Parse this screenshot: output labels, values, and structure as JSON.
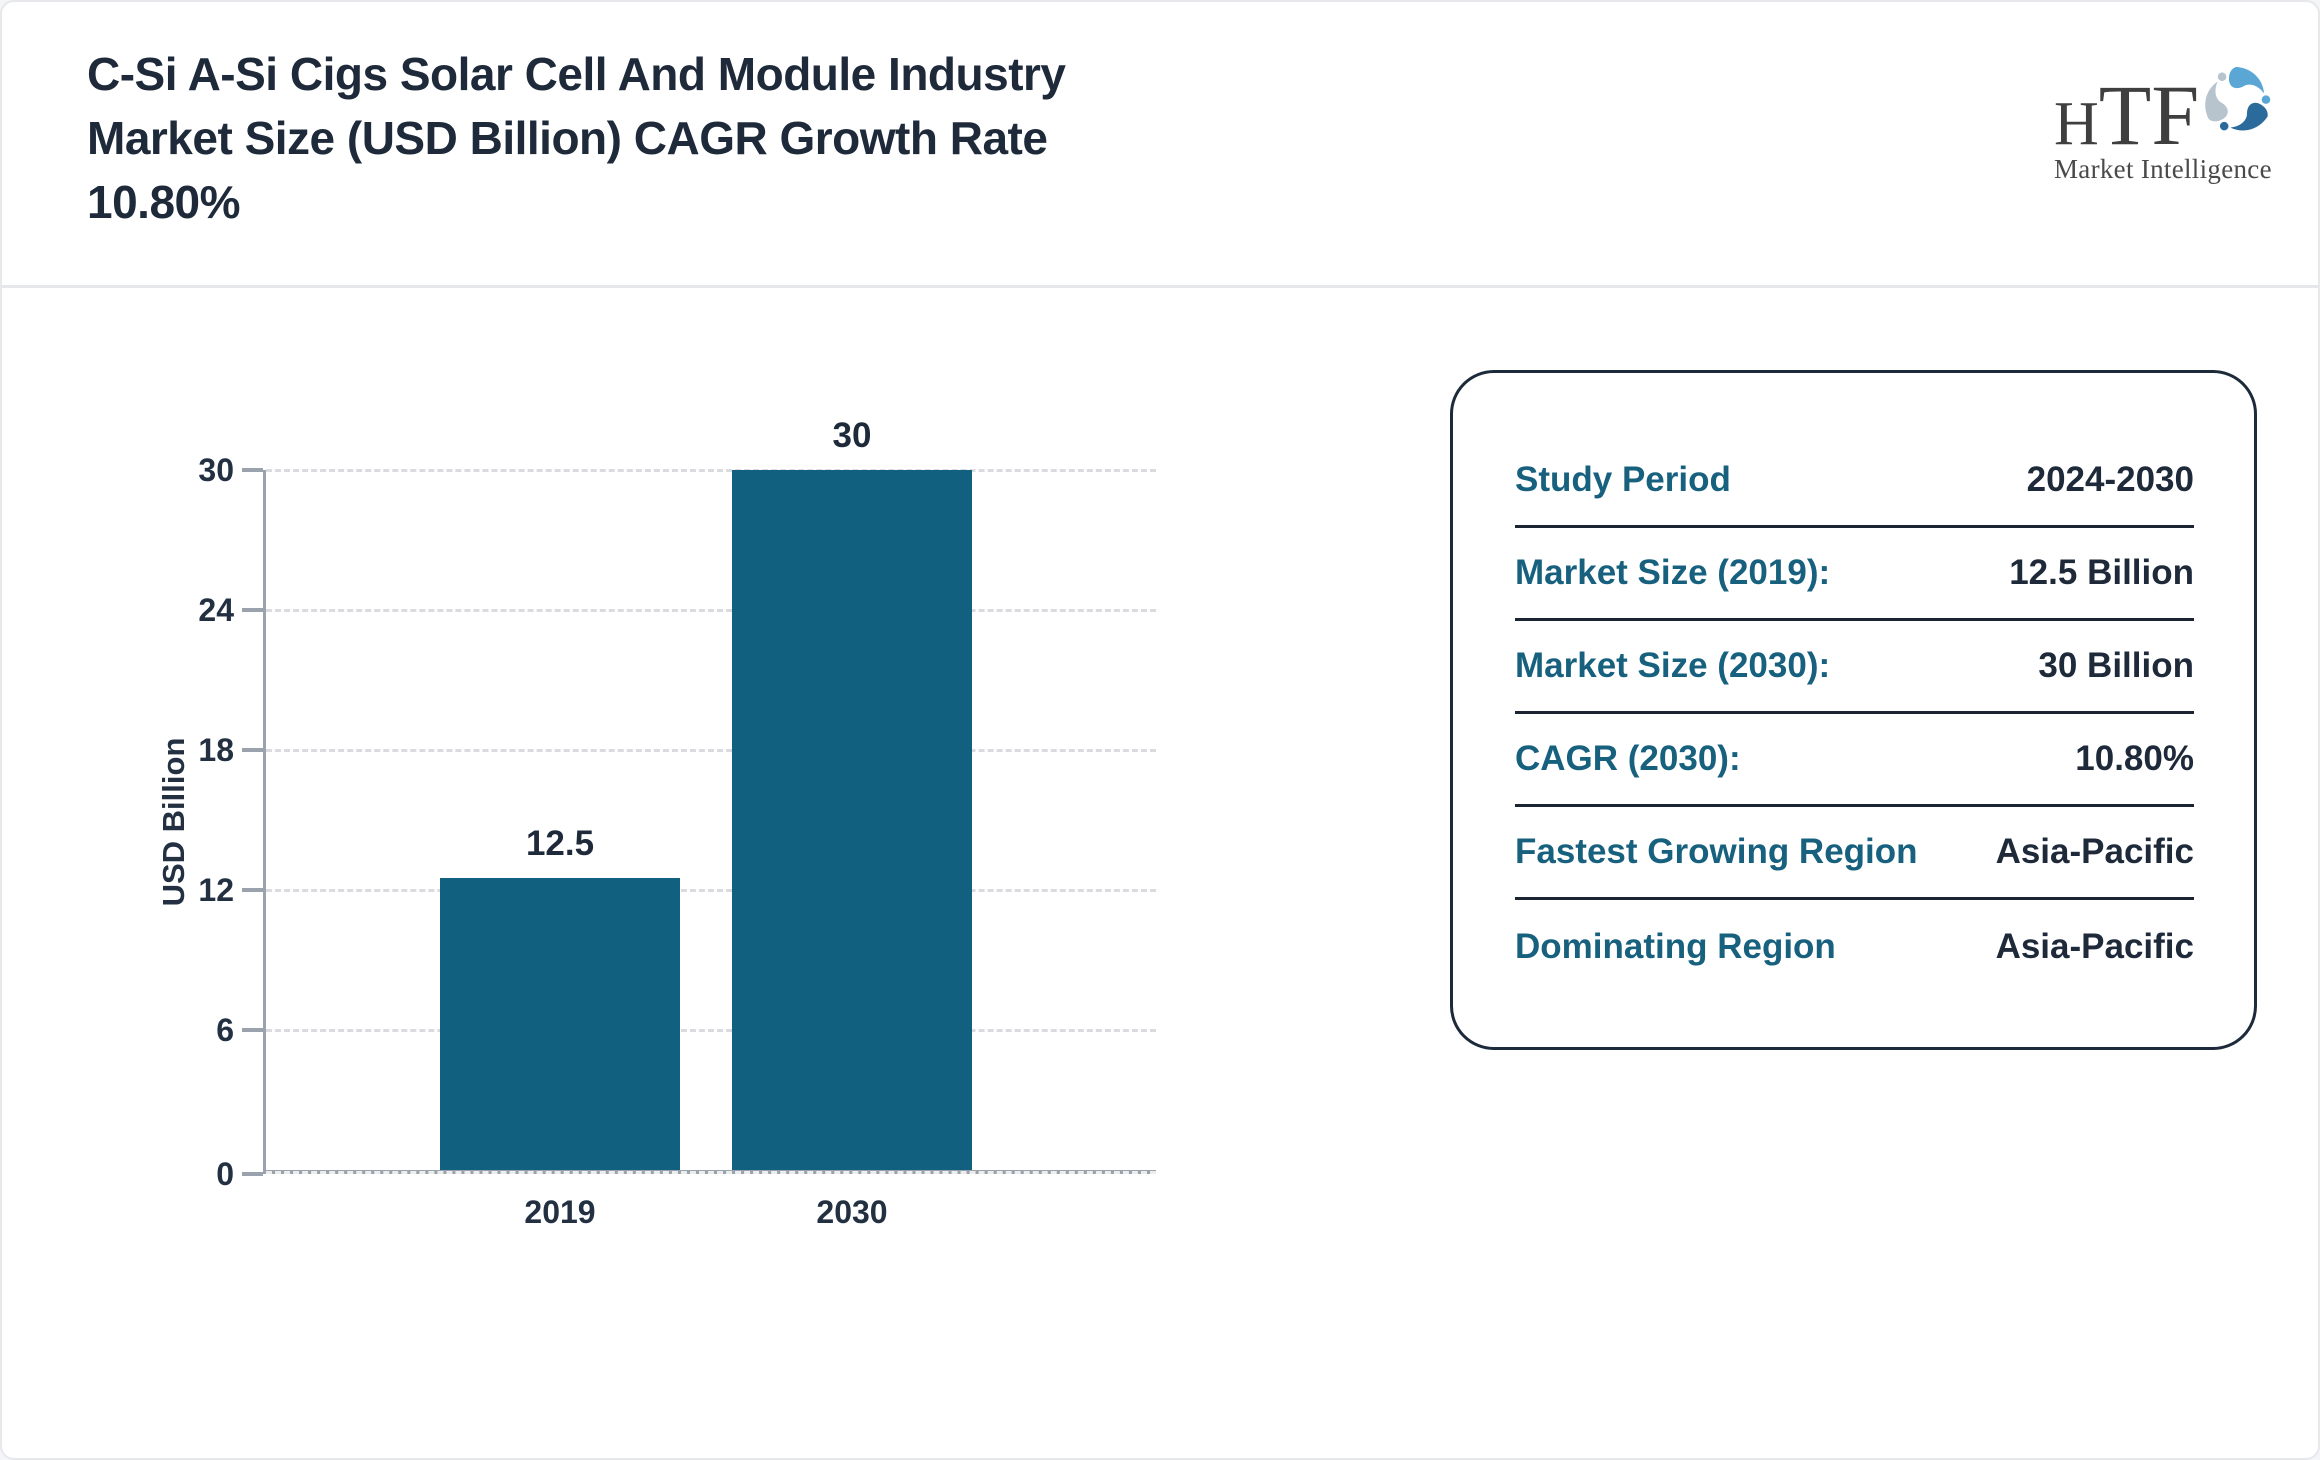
{
  "header": {
    "title_lines": [
      "C-Si A-Si Cigs Solar Cell And Module Industry",
      "Market Size (USD Billion) CAGR Growth Rate",
      "10.80%"
    ],
    "logo": {
      "abbr_first": "H",
      "abbr_rest": "TF",
      "subtitle": "Market Intelligence",
      "mark": "swirl-figures-icon"
    }
  },
  "chart_data": {
    "type": "bar",
    "categories": [
      "2019",
      "2030"
    ],
    "values": [
      12.5,
      30
    ],
    "title": "",
    "xlabel": "",
    "ylabel": "USD Billion",
    "ylim": [
      0,
      30
    ],
    "yticks": [
      0,
      6,
      12,
      18,
      24,
      30
    ],
    "grid": "horizontal-dashed",
    "legend": "none",
    "bar_color": "#11607F"
  },
  "panel": {
    "rows": [
      {
        "label": "Study Period",
        "value": "2024-2030"
      },
      {
        "label": "Market Size (2019):",
        "value": "12.5 Billion"
      },
      {
        "label": "Market Size (2030):",
        "value": "30 Billion"
      },
      {
        "label": "CAGR (2030):",
        "value": "10.80%"
      },
      {
        "label": "Fastest Growing Region",
        "value": "Asia-Pacific"
      },
      {
        "label": "Dominating Region",
        "value": "Asia-Pacific"
      }
    ]
  },
  "colors": {
    "title_text": "#1E2A3A",
    "accent_teal": "#17617F",
    "bar_fill": "#11607F",
    "axis_gray": "#9AA2AD",
    "grid_gray": "#DADBDE",
    "panel_border": "#1C2A3A",
    "card_border": "#E7E8EC",
    "logo_text_gray": "#4A4A4A",
    "logo_blue_light": "#5AA7D6",
    "logo_blue_dark": "#2B6B9B",
    "logo_gray_blue": "#B7C3CD"
  }
}
